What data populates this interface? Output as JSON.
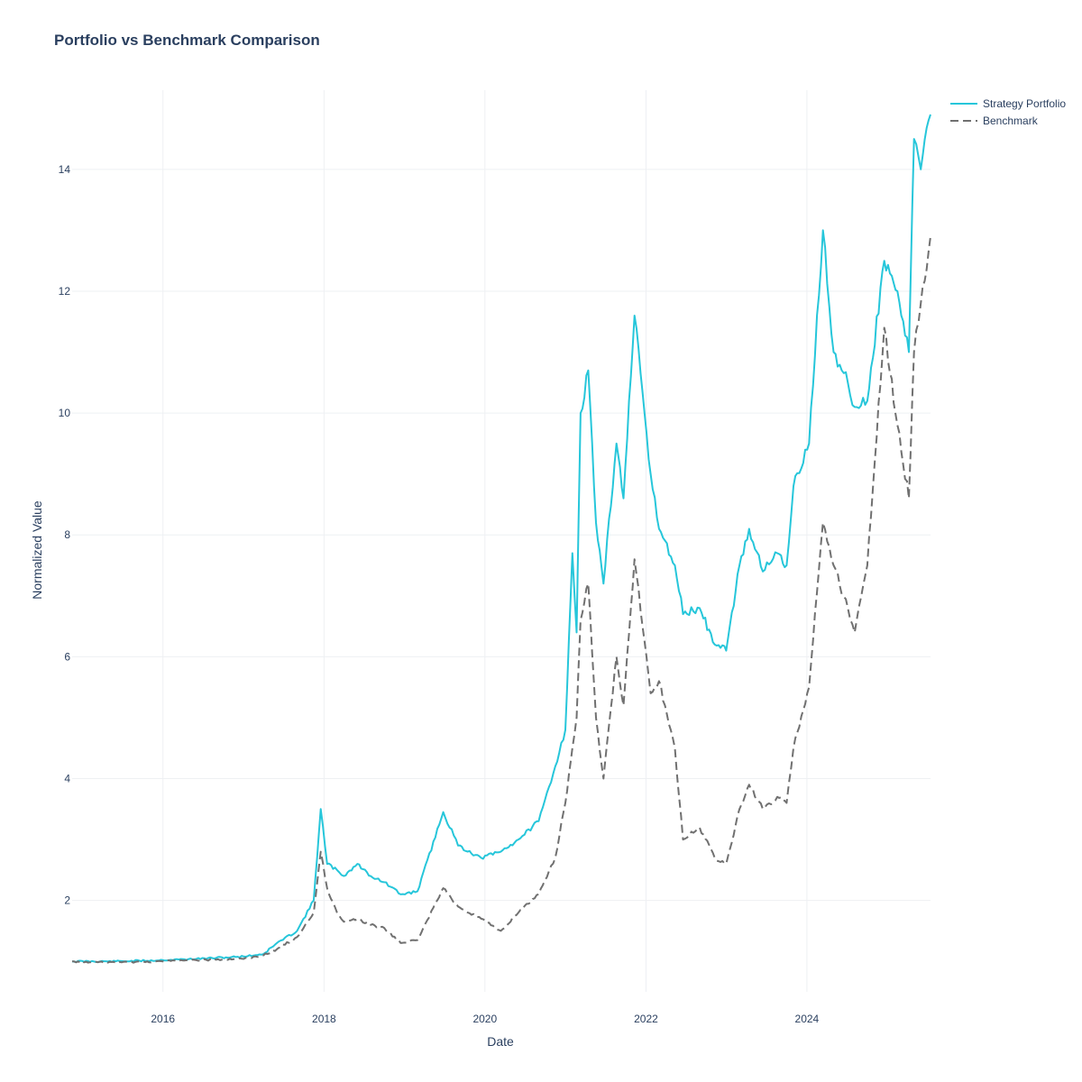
{
  "chart_data": {
    "type": "line",
    "title": "Portfolio vs Benchmark Comparison",
    "xlabel": "Date",
    "ylabel": "Normalized Value",
    "x_range": [
      "2014-11-15",
      "2025-07-15"
    ],
    "ylim": [
      0.5,
      15.3
    ],
    "x_ticks": [
      "2016",
      "2018",
      "2020",
      "2022",
      "2024"
    ],
    "y_ticks": [
      2,
      4,
      6,
      8,
      10,
      12,
      14
    ],
    "grid": true,
    "legend_position": "top-right",
    "series": [
      {
        "name": "Strategy Portfolio",
        "color": "#26c6da",
        "dash": "solid",
        "points": [
          [
            "2014-11-15",
            1.0
          ],
          [
            "2015-06-01",
            1.0
          ],
          [
            "2016-01-01",
            1.02
          ],
          [
            "2016-06-01",
            1.04
          ],
          [
            "2017-01-01",
            1.08
          ],
          [
            "2017-04-01",
            1.12
          ],
          [
            "2017-06-01",
            1.3
          ],
          [
            "2017-09-01",
            1.5
          ],
          [
            "2017-11-15",
            2.0
          ],
          [
            "2017-12-17",
            3.5
          ],
          [
            "2018-01-15",
            2.6
          ],
          [
            "2018-03-01",
            2.5
          ],
          [
            "2018-04-01",
            2.4
          ],
          [
            "2018-06-01",
            2.6
          ],
          [
            "2018-08-01",
            2.4
          ],
          [
            "2018-10-01",
            2.3
          ],
          [
            "2018-12-15",
            2.1
          ],
          [
            "2019-03-01",
            2.15
          ],
          [
            "2019-06-26",
            3.45
          ],
          [
            "2019-09-01",
            2.9
          ],
          [
            "2019-12-15",
            2.7
          ],
          [
            "2020-03-13",
            2.8
          ],
          [
            "2020-06-01",
            3.0
          ],
          [
            "2020-09-01",
            3.3
          ],
          [
            "2020-11-15",
            4.2
          ],
          [
            "2020-12-31",
            4.8
          ],
          [
            "2021-02-01",
            7.7
          ],
          [
            "2021-02-20",
            6.4
          ],
          [
            "2021-03-10",
            10.0
          ],
          [
            "2021-04-14",
            10.7
          ],
          [
            "2021-05-19",
            8.2
          ],
          [
            "2021-06-22",
            7.2
          ],
          [
            "2021-08-20",
            9.5
          ],
          [
            "2021-09-21",
            8.6
          ],
          [
            "2021-11-10",
            11.6
          ],
          [
            "2022-01-22",
            9.0
          ],
          [
            "2022-03-01",
            8.1
          ],
          [
            "2022-05-12",
            7.5
          ],
          [
            "2022-06-18",
            6.7
          ],
          [
            "2022-09-01",
            6.8
          ],
          [
            "2022-11-09",
            6.2
          ],
          [
            "2022-12-31",
            6.1
          ],
          [
            "2023-03-01",
            7.5
          ],
          [
            "2023-04-14",
            8.1
          ],
          [
            "2023-06-15",
            7.4
          ],
          [
            "2023-08-20",
            7.7
          ],
          [
            "2023-10-01",
            7.5
          ],
          [
            "2023-11-01",
            8.8
          ],
          [
            "2024-01-11",
            9.5
          ],
          [
            "2024-03-14",
            13.0
          ],
          [
            "2024-05-01",
            11.0
          ],
          [
            "2024-07-05",
            10.5
          ],
          [
            "2024-08-05",
            10.1
          ],
          [
            "2024-10-01",
            10.2
          ],
          [
            "2024-12-17",
            12.5
          ],
          [
            "2025-02-15",
            12.0
          ],
          [
            "2025-04-08",
            11.0
          ],
          [
            "2025-05-01",
            14.5
          ],
          [
            "2025-06-01",
            14.0
          ],
          [
            "2025-07-15",
            14.9
          ]
        ]
      },
      {
        "name": "Benchmark",
        "color": "#707070",
        "dash": "dash",
        "points": [
          [
            "2014-11-15",
            1.0
          ],
          [
            "2015-06-01",
            0.98
          ],
          [
            "2016-01-01",
            1.0
          ],
          [
            "2016-06-01",
            1.02
          ],
          [
            "2017-01-01",
            1.04
          ],
          [
            "2017-04-01",
            1.1
          ],
          [
            "2017-06-01",
            1.2
          ],
          [
            "2017-09-01",
            1.4
          ],
          [
            "2017-11-15",
            1.8
          ],
          [
            "2017-12-17",
            2.8
          ],
          [
            "2018-01-15",
            2.2
          ],
          [
            "2018-03-01",
            1.8
          ],
          [
            "2018-04-01",
            1.65
          ],
          [
            "2018-06-01",
            1.7
          ],
          [
            "2018-08-01",
            1.6
          ],
          [
            "2018-10-01",
            1.55
          ],
          [
            "2018-12-15",
            1.3
          ],
          [
            "2019-03-01",
            1.35
          ],
          [
            "2019-06-26",
            2.2
          ],
          [
            "2019-09-01",
            1.9
          ],
          [
            "2019-12-15",
            1.7
          ],
          [
            "2020-03-13",
            1.5
          ],
          [
            "2020-06-01",
            1.8
          ],
          [
            "2020-09-01",
            2.1
          ],
          [
            "2020-11-15",
            2.7
          ],
          [
            "2020-12-31",
            3.6
          ],
          [
            "2021-02-01",
            4.5
          ],
          [
            "2021-02-20",
            5.0
          ],
          [
            "2021-03-10",
            6.6
          ],
          [
            "2021-04-14",
            7.2
          ],
          [
            "2021-05-19",
            5.0
          ],
          [
            "2021-06-22",
            4.0
          ],
          [
            "2021-08-20",
            6.0
          ],
          [
            "2021-09-21",
            5.2
          ],
          [
            "2021-11-10",
            7.6
          ],
          [
            "2022-01-22",
            5.4
          ],
          [
            "2022-03-01",
            5.6
          ],
          [
            "2022-05-12",
            4.5
          ],
          [
            "2022-06-18",
            3.0
          ],
          [
            "2022-09-01",
            3.2
          ],
          [
            "2022-11-09",
            2.7
          ],
          [
            "2022-12-31",
            2.6
          ],
          [
            "2023-03-01",
            3.5
          ],
          [
            "2023-04-14",
            3.9
          ],
          [
            "2023-06-15",
            3.5
          ],
          [
            "2023-08-20",
            3.7
          ],
          [
            "2023-10-01",
            3.6
          ],
          [
            "2023-11-01",
            4.5
          ],
          [
            "2024-01-11",
            5.5
          ],
          [
            "2024-03-14",
            8.2
          ],
          [
            "2024-05-01",
            7.5
          ],
          [
            "2024-07-05",
            6.8
          ],
          [
            "2024-08-05",
            6.4
          ],
          [
            "2024-10-01",
            7.5
          ],
          [
            "2024-12-17",
            11.4
          ],
          [
            "2025-02-15",
            9.8
          ],
          [
            "2025-04-08",
            8.6
          ],
          [
            "2025-05-01",
            11.0
          ],
          [
            "2025-06-01",
            11.8
          ],
          [
            "2025-07-15",
            12.9
          ]
        ]
      }
    ]
  }
}
